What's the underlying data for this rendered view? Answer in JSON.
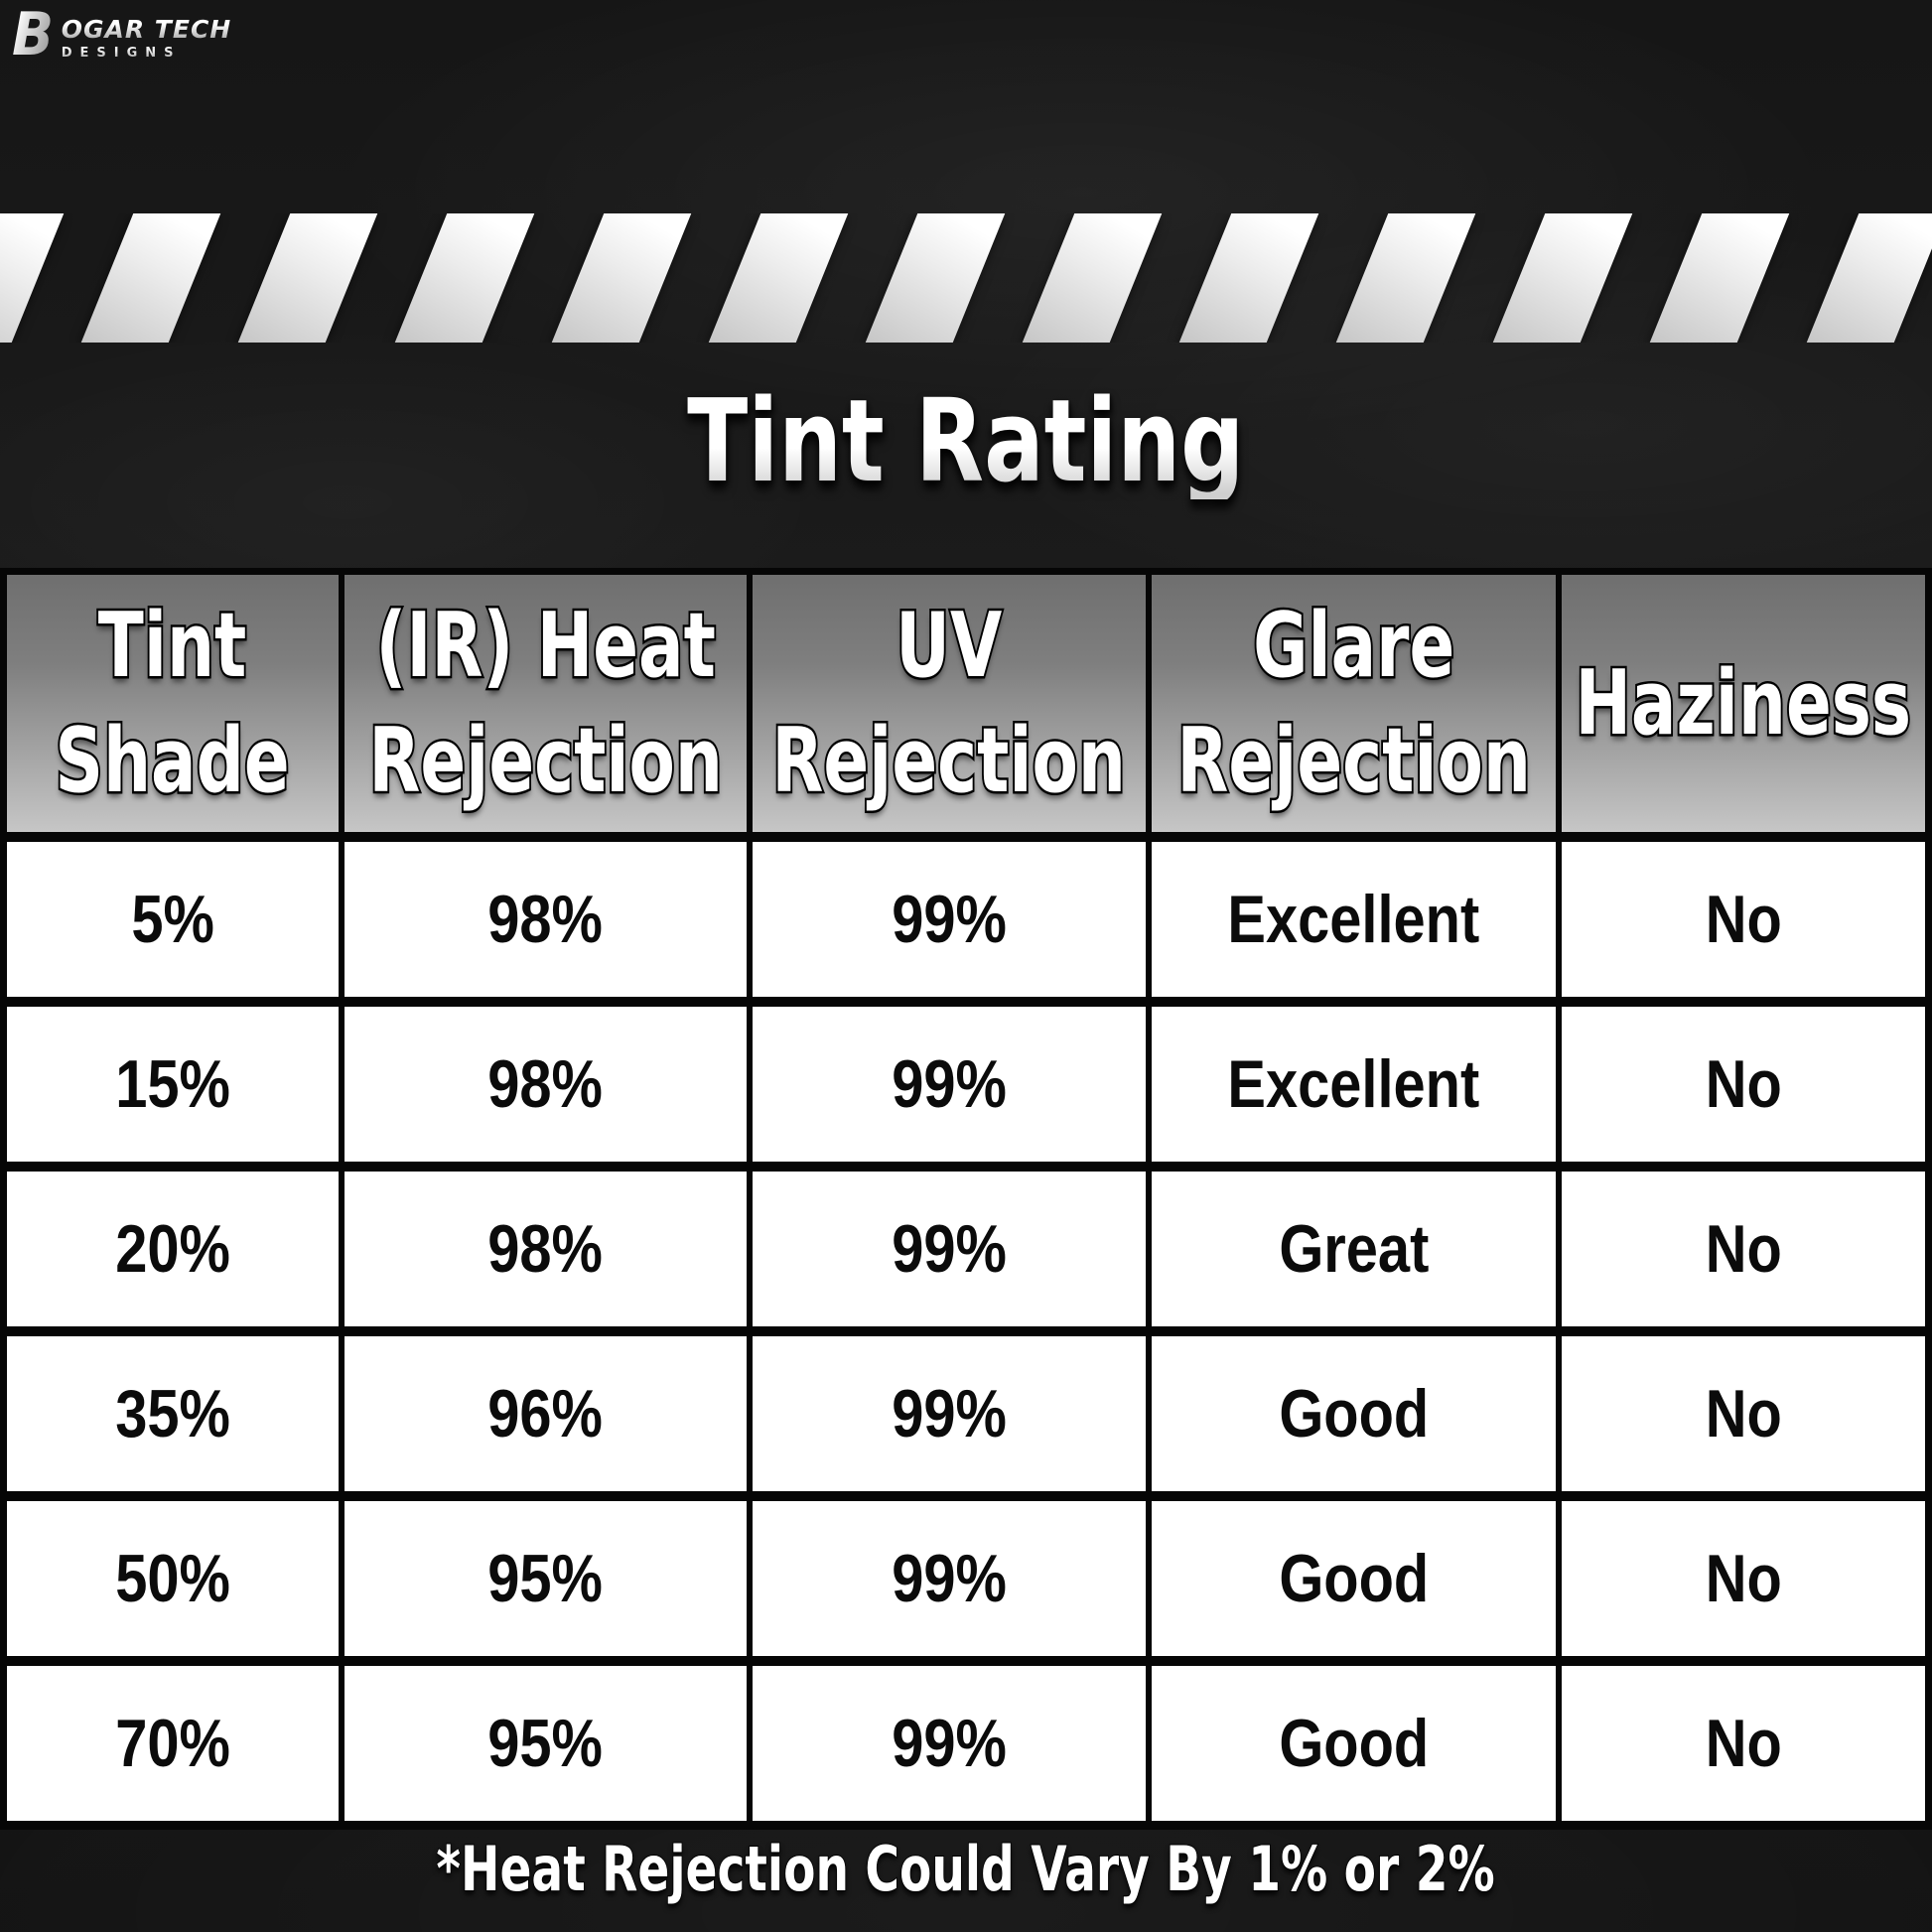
{
  "brand": {
    "monogram": "B",
    "name": "OGAR TECH",
    "subname": "DESIGNS"
  },
  "title": "Tint Rating",
  "chart_data": {
    "type": "table",
    "title": "Tint Rating",
    "columns": [
      "Tint Shade",
      "(IR) Heat Rejection",
      "UV Rejection",
      "Glare Rejection",
      "Haziness"
    ],
    "column_lines": [
      [
        "Tint",
        "Shade"
      ],
      [
        "(IR) Heat",
        "Rejection"
      ],
      [
        "UV",
        "Rejection"
      ],
      [
        "Glare",
        "Rejection"
      ],
      [
        "Haziness"
      ]
    ],
    "rows": [
      [
        "5%",
        "98%",
        "99%",
        "Excellent",
        "No"
      ],
      [
        "15%",
        "98%",
        "99%",
        "Excellent",
        "No"
      ],
      [
        "20%",
        "98%",
        "99%",
        "Great",
        "No"
      ],
      [
        "35%",
        "96%",
        "99%",
        "Good",
        "No"
      ],
      [
        "50%",
        "95%",
        "99%",
        "Good",
        "No"
      ],
      [
        "70%",
        "95%",
        "99%",
        "Good",
        "No"
      ]
    ],
    "footnote": "*Heat Rejection Could Vary By 1% or 2%"
  },
  "colors": {
    "background": "#181818",
    "table_border": "#060606",
    "header_gradient_top": "#6f6f6f",
    "header_gradient_bottom": "#c6c6c6",
    "cell_background": "#ffffff",
    "cell_text": "#0b0b0b",
    "stripe_silver": "#ececec",
    "title_text": "#ffffff"
  }
}
